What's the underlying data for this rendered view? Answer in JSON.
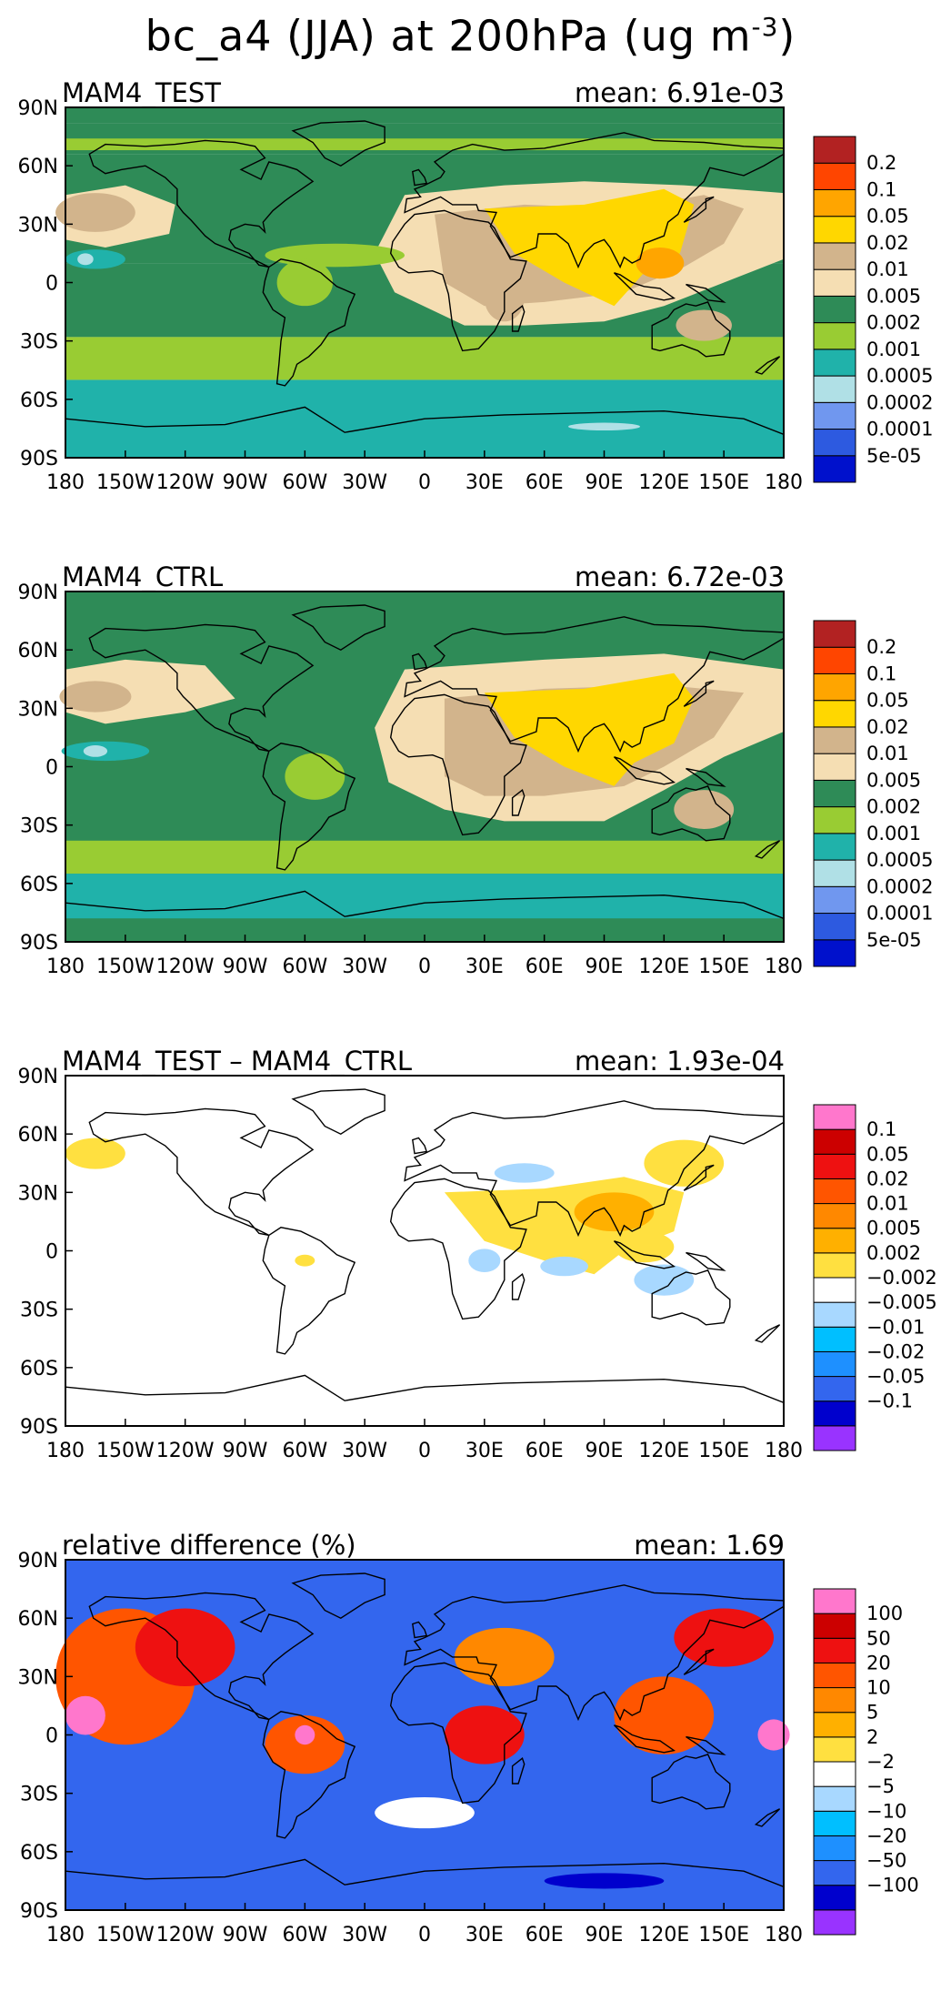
{
  "title": {
    "text": "bc_a4 (JJA) at 200hPa (ug m",
    "exponent": "-3",
    "close": ")"
  },
  "colors": {
    "seq": [
      "#0011cc",
      "#2d5ae0",
      "#7097ef",
      "#b0e0e6",
      "#20b2aa",
      "#99cc33",
      "#2e8b57",
      "#f5deb3",
      "#d2b48c",
      "#ffd700",
      "#ffa500",
      "#ff4500",
      "#b22222"
    ],
    "div": [
      "#9933ff",
      "#0000cd",
      "#3366ee",
      "#1e90ff",
      "#00bfff",
      "#a8d8ff",
      "#ffffff",
      "#ffe040",
      "#ffb000",
      "#ff8800",
      "#ff5500",
      "#ee1111",
      "#cc0000",
      "#ff77cc"
    ]
  },
  "chart_data": [
    {
      "type": "heatmap",
      "title": "MAM4_TEST",
      "mean_text": "mean: 6.91e-03",
      "xlabel_ticks": [
        "180",
        "150W",
        "120W",
        "90W",
        "60W",
        "30W",
        "0",
        "30E",
        "60E",
        "90E",
        "120E",
        "150E",
        "180"
      ],
      "ylabel_ticks": [
        "90N",
        "60N",
        "30N",
        "0",
        "30S",
        "60S",
        "90S"
      ],
      "xlim": [
        -180,
        180
      ],
      "ylim": [
        -90,
        90
      ],
      "colorbar_levels": [
        "0.2",
        "0.1",
        "0.05",
        "0.02",
        "0.01",
        "0.005",
        "0.002",
        "0.001",
        "0.0005",
        "0.0002",
        "0.0001",
        "5e-05"
      ],
      "palette": "seq",
      "scene": "test"
    },
    {
      "type": "heatmap",
      "title": "MAM4_CTRL",
      "mean_text": "mean: 6.72e-03",
      "xlabel_ticks": [
        "180",
        "150W",
        "120W",
        "90W",
        "60W",
        "30W",
        "0",
        "30E",
        "60E",
        "90E",
        "120E",
        "150E",
        "180"
      ],
      "ylabel_ticks": [
        "90N",
        "60N",
        "30N",
        "0",
        "30S",
        "60S",
        "90S"
      ],
      "xlim": [
        -180,
        180
      ],
      "ylim": [
        -90,
        90
      ],
      "colorbar_levels": [
        "0.2",
        "0.1",
        "0.05",
        "0.02",
        "0.01",
        "0.005",
        "0.002",
        "0.001",
        "0.0005",
        "0.0002",
        "0.0001",
        "5e-05"
      ],
      "palette": "seq",
      "scene": "ctrl"
    },
    {
      "type": "heatmap",
      "title": "MAM4_TEST – MAM4_CTRL",
      "mean_text": "mean: 1.93e-04",
      "xlabel_ticks": [
        "180",
        "150W",
        "120W",
        "90W",
        "60W",
        "30W",
        "0",
        "30E",
        "60E",
        "90E",
        "120E",
        "150E",
        "180"
      ],
      "ylabel_ticks": [
        "90N",
        "60N",
        "30N",
        "0",
        "30S",
        "60S",
        "90S"
      ],
      "xlim": [
        -180,
        180
      ],
      "ylim": [
        -90,
        90
      ],
      "colorbar_levels": [
        "0.1",
        "0.05",
        "0.02",
        "0.01",
        "0.005",
        "0.002",
        "−0.002",
        "−0.005",
        "−0.01",
        "−0.02",
        "−0.05",
        "−0.1"
      ],
      "palette": "div",
      "scene": "diff"
    },
    {
      "type": "heatmap",
      "title": "relative difference (%)",
      "mean_text": "mean:   1.69",
      "xlabel_ticks": [
        "180",
        "150W",
        "120W",
        "90W",
        "60W",
        "30W",
        "0",
        "30E",
        "60E",
        "90E",
        "120E",
        "150E",
        "180"
      ],
      "ylabel_ticks": [
        "90N",
        "60N",
        "30N",
        "0",
        "30S",
        "60S",
        "90S"
      ],
      "xlim": [
        -180,
        180
      ],
      "ylim": [
        -90,
        90
      ],
      "colorbar_levels": [
        "100",
        "50",
        "20",
        "10",
        "5",
        "2",
        "−2",
        "−5",
        "−10",
        "−20",
        "−50",
        "−100"
      ],
      "palette": "div",
      "scene": "rel"
    }
  ]
}
